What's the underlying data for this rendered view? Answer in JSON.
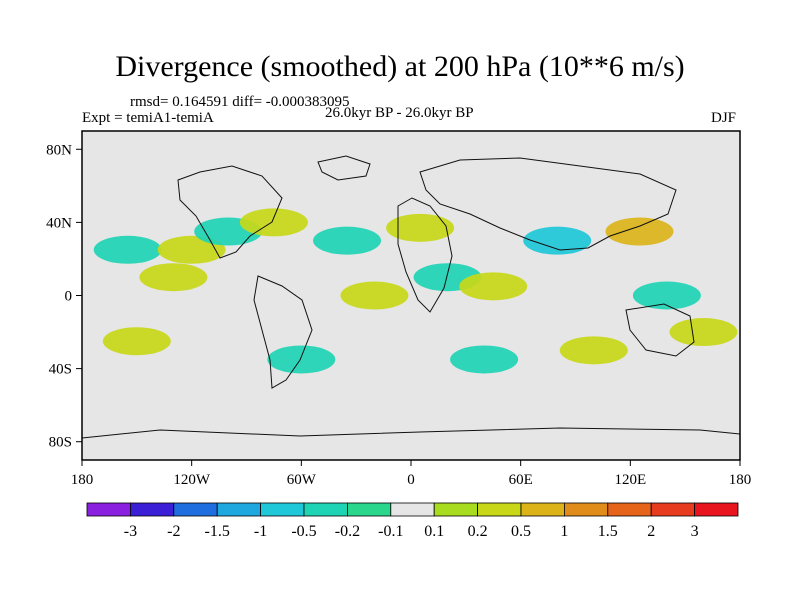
{
  "title": "Divergence (smoothed) at 200 hPa (10**6 m/s)",
  "stats": "rmsd= 0.164591 diff= -0.000383095",
  "experiment": "Expt = temiA1-temiA",
  "period": "26.0kyr BP - 26.0kyr BP",
  "season": "DJF",
  "lat_labels": [
    "80N",
    "40N",
    "0",
    "40S",
    "80S"
  ],
  "lon_labels": [
    "180",
    "120W",
    "60W",
    "0",
    "60E",
    "120E",
    "180"
  ],
  "colorbar": {
    "labels": [
      "-3",
      "-2",
      "-1.5",
      "-1",
      "-0.5",
      "-0.2",
      "-0.1",
      "0.1",
      "0.2",
      "0.5",
      "1",
      "1.5",
      "2",
      "3"
    ],
    "colors": [
      "#8a1fe0",
      "#3b1fd6",
      "#1f6ee0",
      "#1fa8e0",
      "#1fc8d8",
      "#1fd4b4",
      "#29d68c",
      "#e6e6e6",
      "#a8dc1e",
      "#c8d818",
      "#dcb41a",
      "#e08c1a",
      "#e6641a",
      "#e83c1e",
      "#e8141e"
    ]
  },
  "chart_data": {
    "type": "heatmap",
    "title": "Divergence (smoothed) at 200 hPa (10**6 m/s)",
    "variable": "divergence difference",
    "units": "10**6 m/s",
    "x_range": [
      -180,
      180
    ],
    "y_range": [
      -90,
      90
    ],
    "contour_levels": [
      -3,
      -2,
      -1.5,
      -1,
      -0.5,
      -0.2,
      -0.1,
      0.1,
      0.2,
      0.5,
      1,
      1.5,
      2,
      3
    ],
    "features": [
      {
        "lon": -155,
        "lat": 25,
        "value": -0.3
      },
      {
        "lon": -130,
        "lat": 10,
        "value": 0.3
      },
      {
        "lon": -120,
        "lat": 25,
        "value": 0.25
      },
      {
        "lon": -100,
        "lat": 35,
        "value": -0.3
      },
      {
        "lon": -75,
        "lat": 40,
        "value": 0.25
      },
      {
        "lon": -35,
        "lat": 30,
        "value": -0.3
      },
      {
        "lon": -20,
        "lat": 0,
        "value": 0.3
      },
      {
        "lon": 5,
        "lat": 37,
        "value": 0.3
      },
      {
        "lon": 20,
        "lat": 10,
        "value": -0.3
      },
      {
        "lon": 45,
        "lat": 5,
        "value": 0.3
      },
      {
        "lon": 80,
        "lat": 30,
        "value": -0.6
      },
      {
        "lon": 125,
        "lat": 35,
        "value": 0.5
      },
      {
        "lon": 140,
        "lat": 0,
        "value": -0.3
      },
      {
        "lon": 160,
        "lat": -20,
        "value": 0.3
      },
      {
        "lon": -150,
        "lat": -25,
        "value": 0.3
      },
      {
        "lon": -60,
        "lat": -35,
        "value": -0.3
      },
      {
        "lon": 40,
        "lat": -35,
        "value": -0.3
      },
      {
        "lon": 100,
        "lat": -30,
        "value": 0.3
      }
    ]
  }
}
